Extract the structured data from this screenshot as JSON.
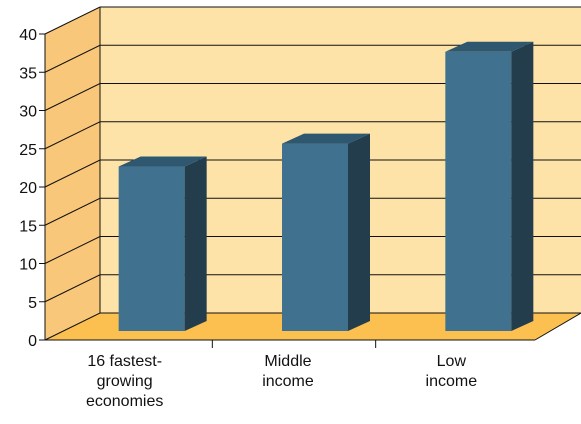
{
  "chart_data": {
    "type": "bar",
    "title": "",
    "xlabel": "",
    "ylabel": "",
    "categories": [
      "16 fastest-growing economies",
      "Middle income",
      "Low income"
    ],
    "category_lines": [
      [
        "16 fastest-",
        "growing",
        "economies"
      ],
      [
        "Middle",
        "income"
      ],
      [
        "Low",
        "income"
      ]
    ],
    "values": [
      21.5,
      24.5,
      36.5
    ],
    "ylim": [
      0,
      40
    ],
    "yticks": [
      "0",
      "5",
      "10",
      "15",
      "20",
      "25",
      "30",
      "35",
      "40"
    ],
    "grid": true,
    "legend": "none",
    "style": "3d-bar"
  },
  "colors": {
    "wall": "#fde3a7",
    "side_wall": "#f9c77a",
    "floor": "#fbc04f",
    "bar_front": "#40728f",
    "bar_side": "#233d4d",
    "bar_top": "#2f5870",
    "axis": "#111111"
  }
}
